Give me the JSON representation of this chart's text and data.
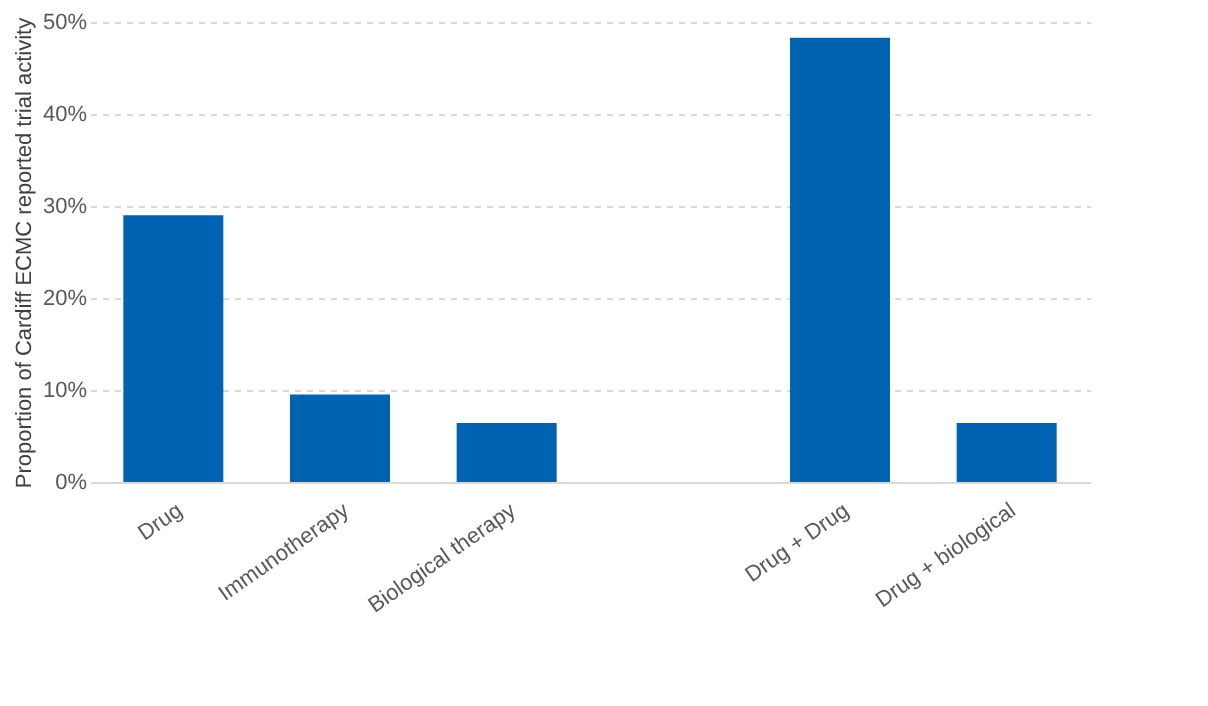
{
  "chart_data": {
    "type": "bar",
    "ylabel": "Proportion of Cardiff ECMC reported  trial activity",
    "categories": [
      "Drug",
      "Immunotherapy",
      "Biological therapy",
      null,
      "Drug + Drug",
      "Drug + biological"
    ],
    "values": [
      29,
      9.5,
      6.4,
      null,
      48.3,
      6.4
    ],
    "color": "#0063b1",
    "ylim": [
      0,
      50
    ],
    "yticks": [
      {
        "value": 0,
        "label": "0%"
      },
      {
        "value": 10,
        "label": "10%"
      },
      {
        "value": 20,
        "label": "20%"
      },
      {
        "value": 30,
        "label": "30%"
      },
      {
        "value": 40,
        "label": "40%"
      },
      {
        "value": 50,
        "label": "50%"
      }
    ],
    "grid": "y"
  }
}
